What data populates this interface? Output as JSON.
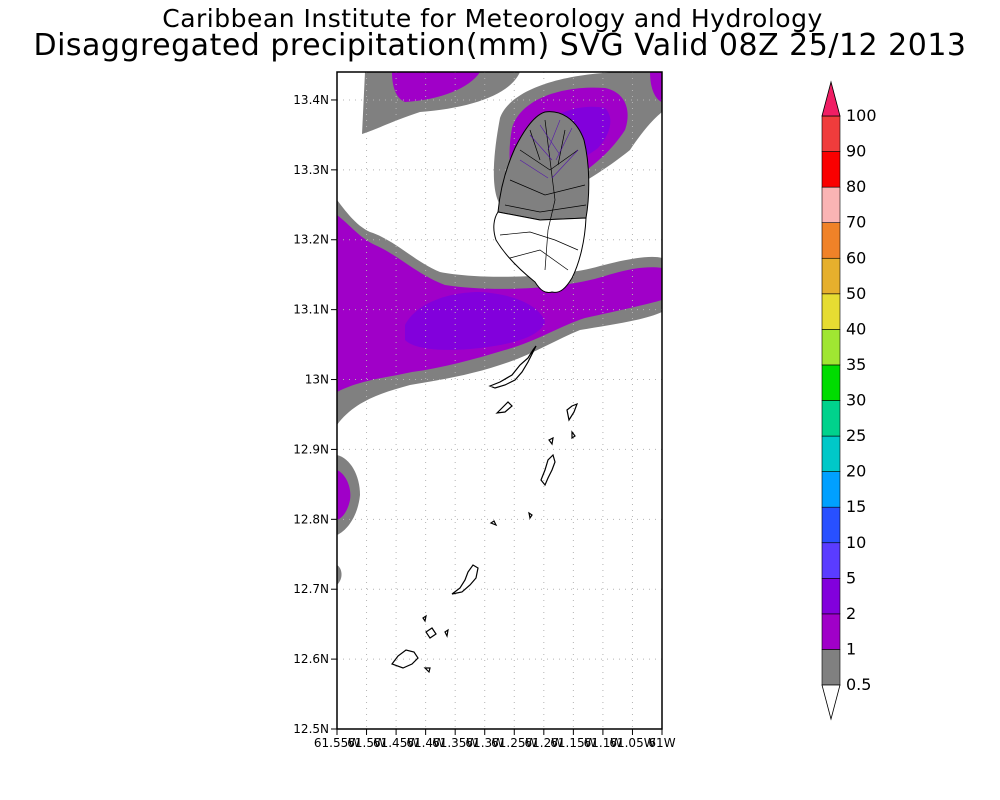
{
  "header": {
    "title": "Caribbean Institute for Meteorology and Hydrology",
    "subtitle": "Disaggregated precipitation(mm) SVG Valid 08Z 25/12 2013"
  },
  "map": {
    "lat_ticks": [
      "13.4N",
      "13.3N",
      "13.2N",
      "13.1N",
      "13N",
      "12.9N",
      "12.8N",
      "12.7N",
      "12.6N",
      "12.5N"
    ],
    "lon_ticks": [
      "61.55W",
      "61.5W",
      "61.45W",
      "61.4W",
      "61.35W",
      "61.3W",
      "61.25W",
      "61.2W",
      "61.15W",
      "61.1W",
      "61.05W",
      "61W"
    ],
    "lat_range": [
      12.5,
      13.44
    ],
    "lon_range": [
      -61.55,
      -61.0
    ],
    "gridlines": true
  },
  "legend": {
    "levels": [
      {
        "label": "0.5",
        "color": "#808080"
      },
      {
        "label": "1",
        "color": "#a000c8"
      },
      {
        "label": "2",
        "color": "#8200dc"
      },
      {
        "label": "5",
        "color": "#5a3cff"
      },
      {
        "label": "10",
        "color": "#2850ff"
      },
      {
        "label": "15",
        "color": "#00a0ff"
      },
      {
        "label": "20",
        "color": "#00c8c8"
      },
      {
        "label": "25",
        "color": "#00d28c"
      },
      {
        "label": "30",
        "color": "#00dc00"
      },
      {
        "label": "35",
        "color": "#a0e632"
      },
      {
        "label": "40",
        "color": "#e6dc32"
      },
      {
        "label": "50",
        "color": "#e6af2d"
      },
      {
        "label": "60",
        "color": "#f08228"
      },
      {
        "label": "70",
        "color": "#fab4b4"
      },
      {
        "label": "80",
        "color": "#fa0000"
      },
      {
        "label": "90",
        "color": "#f03c3c"
      },
      {
        "label": "100",
        "color": "#f01e64"
      }
    ]
  }
}
